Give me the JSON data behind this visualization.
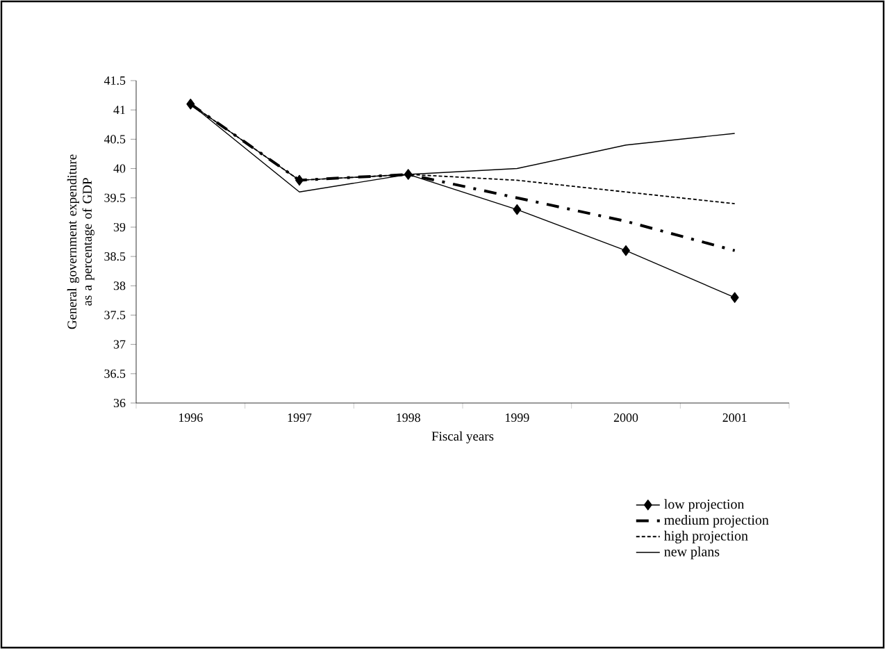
{
  "chart_data": {
    "type": "line",
    "xlabel": "Fiscal years",
    "ylabel": "General government expenditure as a percentage of GDP",
    "categories": [
      "1996",
      "1997",
      "1998",
      "1999",
      "2000",
      "2001"
    ],
    "ylim": [
      36,
      41.5
    ],
    "yticks": [
      36,
      36.5,
      37,
      37.5,
      38,
      38.5,
      39,
      39.5,
      40,
      40.5,
      41,
      41.5
    ],
    "legend": "bottom right",
    "grid": false,
    "series": [
      {
        "name": "low projection",
        "color": "#000000",
        "marker": "diamond",
        "line_style": "solid",
        "values": [
          41.1,
          39.8,
          39.9,
          39.3,
          38.6,
          37.8
        ]
      },
      {
        "name": "medium projection",
        "color": "#000000",
        "marker": "none",
        "line_style": "dashed",
        "values": [
          41.1,
          39.8,
          39.9,
          39.5,
          39.1,
          38.6
        ]
      },
      {
        "name": "high projection",
        "color": "#000000",
        "marker": "none",
        "line_style": "dotted",
        "values": [
          41.1,
          39.8,
          39.9,
          39.8,
          39.6,
          39.4
        ]
      },
      {
        "name": "new plans",
        "color": "#000000",
        "marker": "none",
        "line_style": "solid",
        "values": [
          41.1,
          39.6,
          39.9,
          40.0,
          40.4,
          40.6
        ]
      }
    ]
  }
}
